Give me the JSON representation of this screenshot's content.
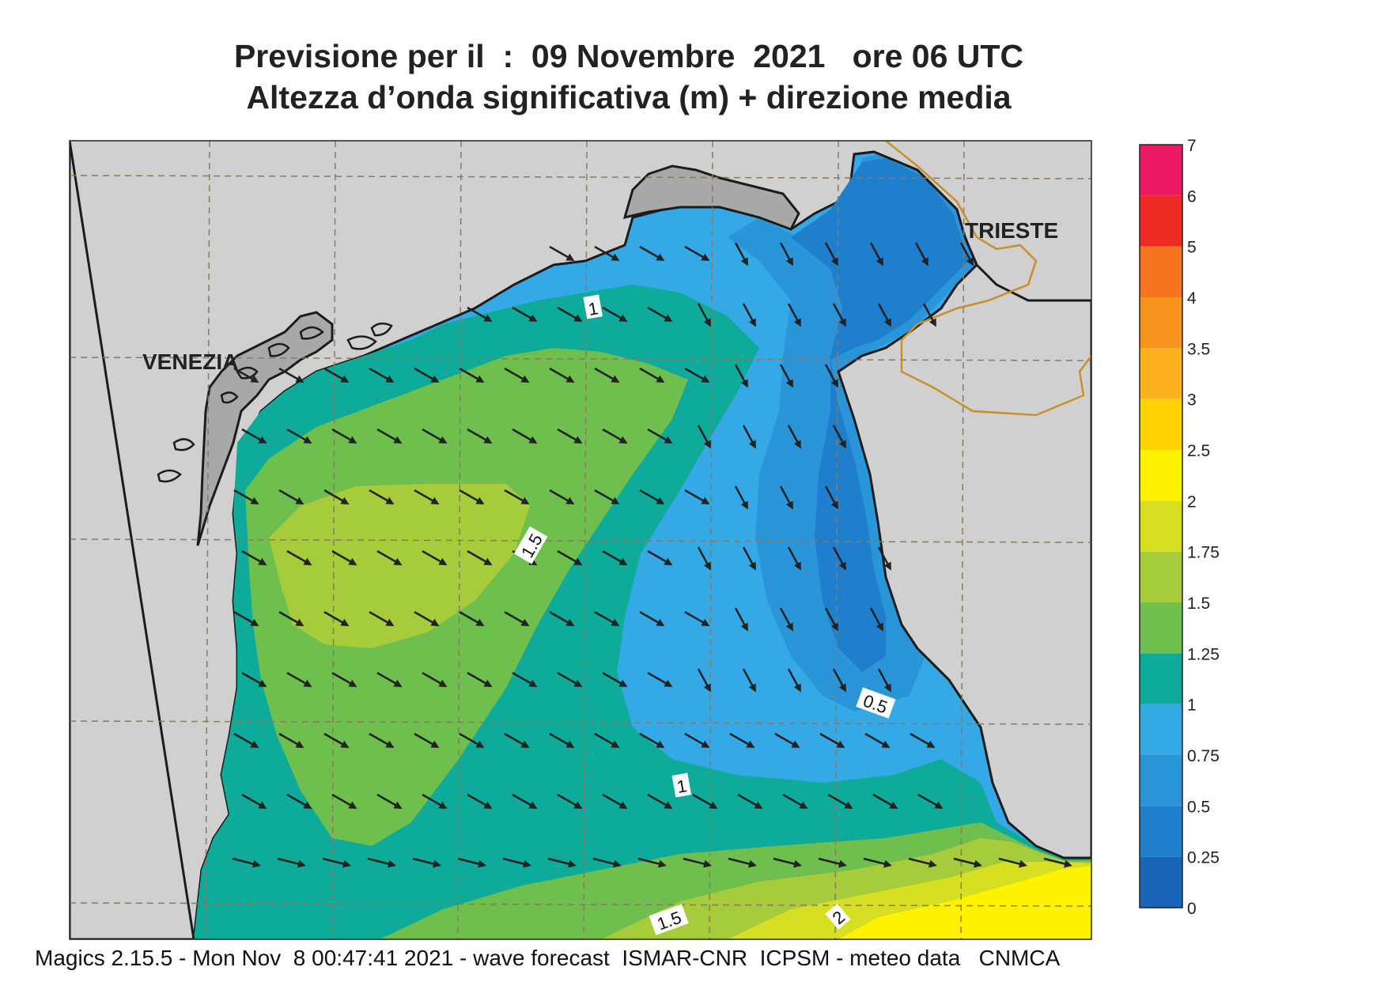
{
  "title": {
    "line1": "Previsione per il  :  09 Novembre  2021   ore 06 UTC",
    "line2": "Altezza d’onda significativa (m) + direzione media"
  },
  "cities": [
    {
      "name": "VENEZIA"
    },
    {
      "name": "TRIESTE"
    }
  ],
  "contour_labels": [
    "1",
    "1.5",
    "0.5",
    "1",
    "1.5",
    "2"
  ],
  "legend": {
    "levels": [
      "0",
      "0.25",
      "0.5",
      "0.75",
      "1",
      "1.25",
      "1.5",
      "1.75",
      "2",
      "2.5",
      "3",
      "3.5",
      "4",
      "5",
      "6",
      "7"
    ],
    "colors": [
      "#1a64b8",
      "#1f7fcc",
      "#2a95d8",
      "#35a9e6",
      "#0eaa9a",
      "#6ebf4e",
      "#a6cc3c",
      "#d6df22",
      "#fff200",
      "#fed300",
      "#fcb21e",
      "#f7941d",
      "#f47422",
      "#ee2a24",
      "#ec1a62"
    ]
  },
  "palette": {
    "land": "#d0d0d0",
    "border": "#c8902a",
    "coast": "#1c1c1c"
  },
  "footer": "Magics 2.15.5 - Mon Nov  8 00:47:41 2021 - wave forecast  ISMAR-CNR  ICPSM - meteo data   CNMCA"
}
